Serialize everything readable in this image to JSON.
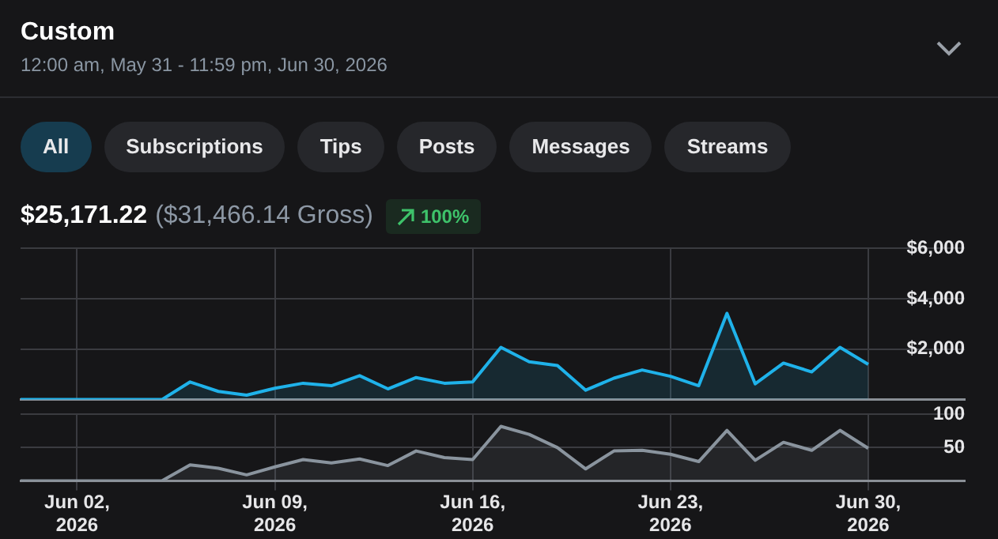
{
  "chart_data": [
    {
      "type": "area",
      "title": "Custom",
      "subtitle": "12:00 am, May 31 - 11:59 pm, Jun 30, 2026",
      "annotations": [
        "All",
        "Subscriptions",
        "Tips",
        "Posts",
        "Messages",
        "Streams",
        "$25,171.22",
        "($31,466.14 Gross)",
        "100%"
      ],
      "x": [
        "2026-05-31",
        "2026-06-01",
        "2026-06-02",
        "2026-06-03",
        "2026-06-04",
        "2026-06-05",
        "2026-06-06",
        "2026-06-07",
        "2026-06-08",
        "2026-06-09",
        "2026-06-10",
        "2026-06-11",
        "2026-06-12",
        "2026-06-13",
        "2026-06-14",
        "2026-06-15",
        "2026-06-16",
        "2026-06-17",
        "2026-06-18",
        "2026-06-19",
        "2026-06-20",
        "2026-06-21",
        "2026-06-22",
        "2026-06-23",
        "2026-06-24",
        "2026-06-25",
        "2026-06-26",
        "2026-06-27",
        "2026-06-28",
        "2026-06-29",
        "2026-06-30"
      ],
      "series": [
        {
          "color": "#1fb2ea",
          "values": [
            0,
            0,
            0,
            0,
            0,
            0,
            700,
            325,
            175,
            450,
            650,
            550,
            950,
            425,
            875,
            650,
            700,
            2075,
            1500,
            1350,
            375,
            850,
            1175,
            925,
            550,
            3425,
            625,
            1450,
            1100,
            2075,
            1400
          ]
        }
      ],
      "xlim": [
        "2026-05-31",
        "2026-07-03T10:00"
      ],
      "xticks": [
        {
          "value": "2026-06-02",
          "label": null
        },
        {
          "value": "2026-06-09",
          "label": null
        },
        {
          "value": "2026-06-16",
          "label": null
        },
        {
          "value": "2026-06-23",
          "label": null
        },
        {
          "value": "2026-06-30",
          "label": null
        }
      ],
      "ylim": [
        0,
        6000
      ],
      "yticks": [
        {
          "value": 2000,
          "label": "$2,000"
        },
        {
          "value": 4000,
          "label": "$4,000"
        },
        {
          "value": 6000,
          "label": "$6,000"
        }
      ],
      "grid": true,
      "legend": false,
      "tick_labels": "y"
    },
    {
      "type": "area",
      "x": [
        "2026-05-31",
        "2026-06-01",
        "2026-06-02",
        "2026-06-03",
        "2026-06-04",
        "2026-06-05",
        "2026-06-06",
        "2026-06-07",
        "2026-06-08",
        "2026-06-09",
        "2026-06-10",
        "2026-06-11",
        "2026-06-12",
        "2026-06-13",
        "2026-06-14",
        "2026-06-15",
        "2026-06-16",
        "2026-06-17",
        "2026-06-18",
        "2026-06-19",
        "2026-06-20",
        "2026-06-21",
        "2026-06-22",
        "2026-06-23",
        "2026-06-24",
        "2026-06-25",
        "2026-06-26",
        "2026-06-27",
        "2026-06-28",
        "2026-06-29",
        "2026-06-30"
      ],
      "series": [
        {
          "color": "#8a949e",
          "values": [
            0,
            0,
            0,
            0,
            0,
            0,
            24,
            19,
            9,
            21,
            32,
            27,
            33,
            23,
            45,
            35,
            32,
            82,
            70,
            50,
            18,
            45,
            46,
            40,
            29,
            76,
            31,
            58,
            46,
            76,
            49
          ]
        }
      ],
      "xlim": [
        "2026-05-31",
        "2026-07-03T10:00"
      ],
      "xticks": [
        {
          "value": "2026-06-02",
          "label": "Jun 02, 2026"
        },
        {
          "value": "2026-06-09",
          "label": "Jun 09, 2026"
        },
        {
          "value": "2026-06-16",
          "label": "Jun 16, 2026"
        },
        {
          "value": "2026-06-23",
          "label": "Jun 23, 2026"
        },
        {
          "value": "2026-06-30",
          "label": "Jun 30, 2026"
        }
      ],
      "ylim": [
        0,
        100
      ],
      "yticks": [
        50,
        100
      ],
      "grid": true,
      "legend": false
    }
  ]
}
